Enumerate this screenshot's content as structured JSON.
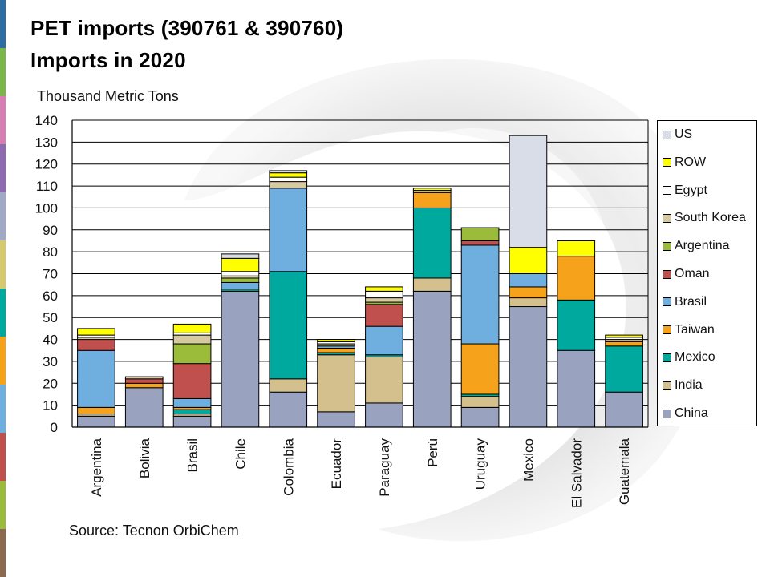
{
  "slide": {
    "title_line1": "PET imports (390761 & 390760)",
    "title_line2": "Imports in 2020",
    "source": "Source: Tecnon OrbiChem"
  },
  "chart_data": {
    "type": "bar",
    "stacked": true,
    "ylabel": "Thousand Metric Tons",
    "ylim": [
      0,
      140
    ],
    "yticks": [
      0,
      10,
      20,
      30,
      40,
      50,
      60,
      70,
      80,
      90,
      100,
      110,
      120,
      130,
      140
    ],
    "grid": true,
    "legend_position": "right",
    "categories": [
      "Argentina",
      "Bolivia",
      "Brasil",
      "Chile",
      "Colombia",
      "Ecuador",
      "Paraguay",
      "Perú",
      "Uruguay",
      "Mexico",
      "El Salvador",
      "Guatemala"
    ],
    "series": [
      {
        "name": "China",
        "color": "#99a3bf",
        "values": [
          5,
          18,
          5,
          62,
          16,
          7,
          11,
          62,
          9,
          55,
          35,
          16
        ]
      },
      {
        "name": "India",
        "color": "#d3c08d",
        "values": [
          1,
          0,
          1,
          0,
          6,
          26,
          21,
          6,
          5,
          4,
          0,
          0
        ]
      },
      {
        "name": "Mexico",
        "color": "#00a99d",
        "values": [
          0,
          0,
          2,
          1,
          49,
          1,
          1,
          32,
          1,
          0,
          23,
          21
        ]
      },
      {
        "name": "Taiwan",
        "color": "#f7a21b",
        "values": [
          3,
          2,
          1,
          0,
          0,
          2,
          0,
          7,
          23,
          5,
          20,
          2
        ]
      },
      {
        "name": "Brasil",
        "color": "#6fafe0",
        "values": [
          26,
          0,
          4,
          3,
          38,
          1,
          13,
          0,
          45,
          6,
          0,
          0
        ]
      },
      {
        "name": "Oman",
        "color": "#c0504d",
        "values": [
          5,
          2,
          16,
          0,
          0,
          0,
          10,
          0,
          2,
          0,
          0,
          0
        ]
      },
      {
        "name": "Argentina",
        "color": "#9bbb3b",
        "values": [
          0,
          0,
          9,
          2,
          0,
          0,
          1,
          0,
          6,
          0,
          0,
          0
        ]
      },
      {
        "name": "South Korea",
        "color": "#d6caa1",
        "values": [
          1,
          1,
          4,
          1,
          3,
          1,
          2,
          1,
          0,
          0,
          0,
          1
        ]
      },
      {
        "name": "Egypt",
        "color": "#ffffff",
        "values": [
          1,
          0,
          1,
          2,
          2,
          1,
          3,
          0,
          0,
          0,
          0,
          1
        ]
      },
      {
        "name": "ROW",
        "color": "#ffff00",
        "values": [
          3,
          0,
          4,
          6,
          2,
          1,
          2,
          1,
          0,
          12,
          7,
          1
        ]
      },
      {
        "name": "US",
        "color": "#d8dde8",
        "values": [
          0,
          0,
          0,
          2,
          1,
          0,
          0,
          0,
          0,
          51,
          0,
          0
        ]
      }
    ]
  },
  "decor": {
    "stripe_colors": [
      "#2e6da4",
      "#7ab648",
      "#d77fb3",
      "#8e6bb0",
      "#a1a9c4",
      "#d6c86d",
      "#00a99d",
      "#f7a21b",
      "#6fafe0",
      "#c0504d",
      "#9bbb3b",
      "#8b6a4f"
    ]
  }
}
